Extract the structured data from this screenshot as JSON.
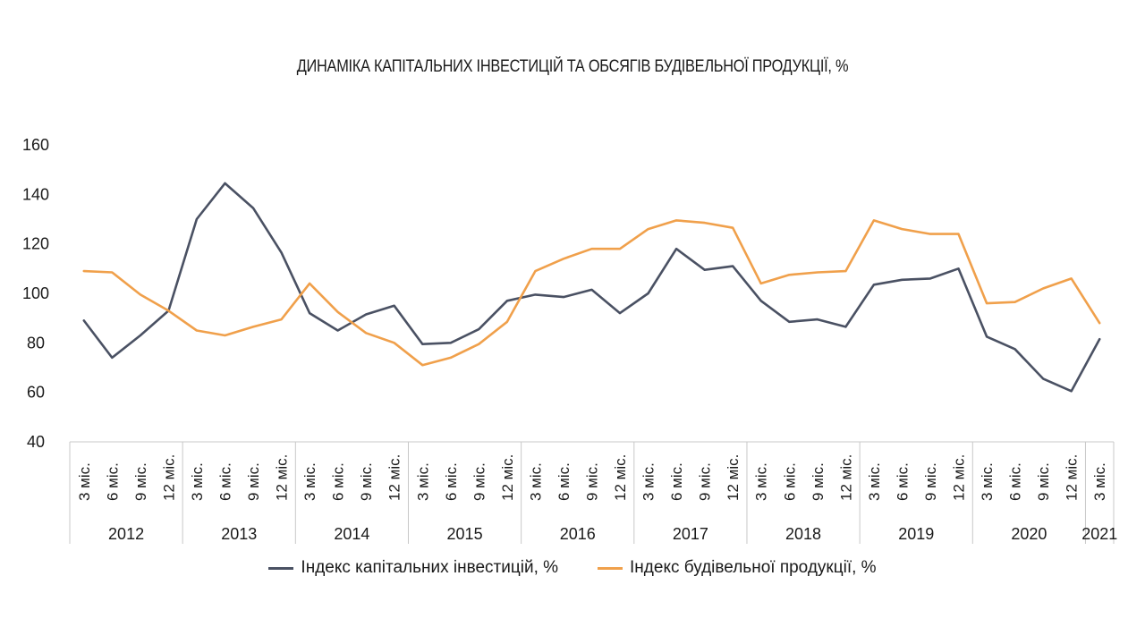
{
  "chart_data": {
    "type": "line",
    "title": "ДИНАМІКА КАПІТАЛЬНИХ ІНВЕСТИЦІЙ ТА ОБСЯГІВ БУДІВЕЛЬНОЇ ПРОДУКЦІЇ, %",
    "ylim": [
      40,
      160
    ],
    "yticks": [
      40,
      60,
      80,
      100,
      120,
      140,
      160
    ],
    "grid": false,
    "legend_position": "bottom",
    "categories": [
      "3 міс.",
      "6 міс.",
      "9 міс.",
      "12 міс.",
      "3 міс.",
      "6 міс.",
      "9 міс.",
      "12 міс.",
      "3 міс.",
      "6 міс.",
      "9 міс.",
      "12 міс.",
      "3 міс.",
      "6 міс.",
      "9 міс.",
      "12 міс.",
      "3 міс.",
      "6 міс.",
      "9 міс.",
      "12 міс.",
      "3 міс.",
      "6 міс.",
      "9 міс.",
      "12 міс.",
      "3 міс.",
      "6 міс.",
      "9 міс.",
      "12 міс.",
      "3 міс.",
      "6 міс.",
      "9 міс.",
      "12 міс.",
      "3 міс.",
      "6 міс.",
      "9 міс.",
      "12 міс.",
      "3 міс."
    ],
    "years": [
      {
        "label": "2012",
        "count": 4
      },
      {
        "label": "2013",
        "count": 4
      },
      {
        "label": "2014",
        "count": 4
      },
      {
        "label": "2015",
        "count": 4
      },
      {
        "label": "2016",
        "count": 4
      },
      {
        "label": "2017",
        "count": 4
      },
      {
        "label": "2018",
        "count": 4
      },
      {
        "label": "2019",
        "count": 4
      },
      {
        "label": "2020",
        "count": 4
      },
      {
        "label": "2021",
        "count": 1
      }
    ],
    "series": [
      {
        "name": "Індекс капітальних інвестицій, %",
        "color": "#4a5163",
        "values": [
          89,
          74,
          83,
          93,
          130,
          144.5,
          134.5,
          116.5,
          92,
          85,
          91.5,
          95,
          79.5,
          80,
          85.5,
          97,
          99.5,
          98.5,
          101.5,
          92,
          100,
          118,
          109.5,
          111,
          97,
          88.5,
          89.5,
          86.5,
          103.5,
          105.5,
          106,
          110,
          82.5,
          77.5,
          65.5,
          60.5,
          81.5
        ]
      },
      {
        "name": "Індекс будівельної продукції, %",
        "color": "#f0a04b",
        "values": [
          109,
          108.5,
          99.5,
          93,
          85,
          83,
          86.5,
          89.5,
          104,
          92.5,
          84,
          80,
          71,
          74,
          79.5,
          88.5,
          109,
          114,
          118,
          118,
          126,
          129.5,
          128.5,
          126.5,
          104,
          107.5,
          108.5,
          109,
          129.5,
          126,
          124,
          124,
          96,
          96.5,
          102,
          106,
          88
        ]
      }
    ]
  }
}
